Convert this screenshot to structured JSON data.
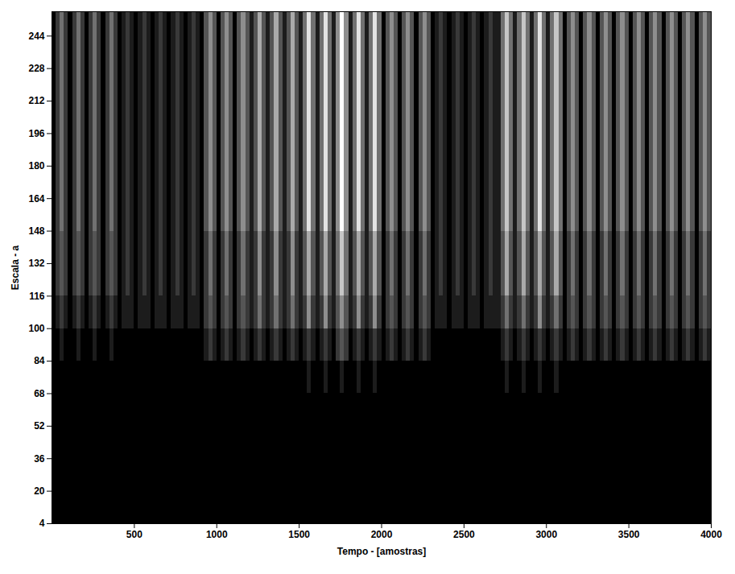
{
  "chart_data": {
    "type": "heatmap",
    "xlabel": "Tempo - [amostras]",
    "ylabel": "Escala - a",
    "xlim": [
      0,
      4000
    ],
    "ylim": [
      4,
      256
    ],
    "xticks": [
      500,
      1000,
      1500,
      2000,
      2500,
      3000,
      3500,
      4000
    ],
    "yticks": [
      4,
      20,
      36,
      52,
      68,
      84,
      100,
      116,
      132,
      148,
      164,
      180,
      196,
      212,
      228,
      244
    ],
    "zlim": [
      0,
      9
    ],
    "x_edges": [
      0,
      25,
      50,
      75,
      100,
      125,
      150,
      175,
      200,
      225,
      250,
      275,
      300,
      325,
      350,
      375,
      400,
      425,
      450,
      475,
      500,
      525,
      550,
      575,
      600,
      625,
      650,
      675,
      700,
      725,
      750,
      775,
      800,
      825,
      850,
      875,
      900,
      925,
      950,
      975,
      1000,
      1025,
      1050,
      1075,
      1100,
      1125,
      1150,
      1175,
      1200,
      1225,
      1250,
      1275,
      1300,
      1325,
      1350,
      1375,
      1400,
      1425,
      1450,
      1475,
      1500,
      1525,
      1550,
      1575,
      1600,
      1625,
      1650,
      1675,
      1700,
      1725,
      1750,
      1775,
      1800,
      1825,
      1850,
      1875,
      1900,
      1925,
      1950,
      1975,
      2000,
      2025,
      2050,
      2075,
      2100,
      2125,
      2150,
      2175,
      2200,
      2225,
      2250,
      2275,
      2300,
      2325,
      2350,
      2375,
      2400,
      2425,
      2450,
      2475,
      2500,
      2525,
      2550,
      2575,
      2600,
      2625,
      2650,
      2675,
      2700,
      2725,
      2750,
      2775,
      2800,
      2825,
      2850,
      2875,
      2900,
      2925,
      2950,
      2975,
      3000,
      3025,
      3050,
      3075,
      3100,
      3125,
      3150,
      3175,
      3200,
      3225,
      3250,
      3275,
      3300,
      3325,
      3350,
      3375,
      3400,
      3425,
      3450,
      3475,
      3500,
      3525,
      3550,
      3575,
      3600,
      3625,
      3650,
      3675,
      3700,
      3725,
      3750,
      3775,
      3800,
      3825,
      3850,
      3875,
      3900,
      3925,
      3950,
      3975,
      4000
    ],
    "y_edges": [
      4,
      68,
      84,
      100,
      116,
      148,
      180,
      212,
      256
    ],
    "z": [
      [
        0,
        0,
        0,
        0,
        0,
        0,
        0,
        0,
        0,
        0,
        0,
        0,
        0,
        0,
        0,
        0,
        0,
        0,
        0,
        0,
        0,
        0,
        0,
        0,
        0,
        0,
        0,
        0,
        0,
        0,
        0,
        0,
        0,
        0,
        0,
        0,
        0,
        0,
        0,
        0,
        0,
        0,
        0,
        0,
        0,
        0,
        0,
        0,
        0,
        0,
        0,
        0,
        0,
        0,
        0,
        0,
        0,
        0,
        0,
        0,
        0,
        0,
        0,
        0,
        0,
        0,
        0,
        0,
        0,
        0,
        0,
        0,
        0,
        0,
        0,
        0,
        0,
        0,
        0,
        0,
        0,
        0,
        0,
        0,
        0,
        0,
        0,
        0,
        0,
        0,
        0,
        0,
        0,
        0,
        0,
        0,
        0,
        0,
        0,
        0,
        0,
        0,
        0,
        0,
        0,
        0,
        0,
        0,
        0,
        0,
        0,
        0,
        0,
        0,
        0,
        0,
        0,
        0,
        0,
        0,
        0,
        0,
        0,
        0,
        0,
        0,
        0,
        0,
        0,
        0,
        0,
        0,
        0,
        0,
        0,
        0,
        0,
        0,
        0,
        0,
        0,
        0,
        0,
        0,
        0,
        0,
        0,
        0,
        0,
        0,
        0,
        0,
        0,
        0,
        0,
        0,
        0,
        0,
        0,
        0
      ],
      [
        0,
        0,
        0,
        0,
        0,
        0,
        0,
        0,
        0,
        0,
        0,
        0,
        0,
        0,
        0,
        0,
        0,
        0,
        0,
        0,
        0,
        0,
        0,
        0,
        0,
        0,
        0,
        0,
        0,
        0,
        0,
        0,
        0,
        0,
        0,
        0,
        0,
        0,
        0,
        0,
        0,
        0,
        0,
        0,
        0,
        0,
        0,
        0,
        0,
        0,
        0,
        0,
        0,
        0,
        0,
        0,
        0,
        0,
        0,
        0,
        0,
        0,
        1,
        0,
        0,
        0,
        1,
        0,
        0,
        0,
        1,
        0,
        0,
        0,
        1,
        0,
        0,
        0,
        1,
        0,
        0,
        0,
        0,
        0,
        0,
        0,
        0,
        0,
        0,
        0,
        0,
        0,
        0,
        0,
        0,
        0,
        0,
        0,
        0,
        0,
        0,
        0,
        0,
        0,
        0,
        0,
        0,
        0,
        0,
        0,
        1,
        0,
        0,
        0,
        1,
        0,
        0,
        0,
        1,
        0,
        0,
        0,
        1,
        0,
        0,
        0,
        0,
        0,
        0,
        0,
        0,
        0,
        0,
        0,
        0,
        0,
        0,
        0,
        0,
        0,
        0,
        0,
        0,
        0,
        0,
        0,
        0,
        0,
        0,
        0,
        0,
        0,
        0,
        0,
        0,
        0,
        0,
        0,
        0,
        0
      ],
      [
        0,
        0,
        1,
        0,
        0,
        0,
        1,
        0,
        0,
        0,
        1,
        0,
        0,
        0,
        1,
        0,
        0,
        0,
        0,
        0,
        0,
        0,
        0,
        0,
        0,
        0,
        0,
        0,
        0,
        0,
        0,
        0,
        0,
        0,
        0,
        0,
        0,
        1,
        2,
        1,
        0,
        1,
        2,
        1,
        0,
        1,
        2,
        1,
        0,
        1,
        2,
        1,
        0,
        1,
        2,
        1,
        0,
        1,
        2,
        1,
        0,
        1,
        2,
        1,
        0,
        1,
        2,
        1,
        0,
        2,
        3,
        2,
        0,
        1,
        2,
        1,
        0,
        1,
        2,
        1,
        0,
        1,
        2,
        1,
        0,
        1,
        2,
        1,
        0,
        1,
        2,
        1,
        0,
        0,
        0,
        0,
        0,
        0,
        0,
        0,
        0,
        0,
        0,
        0,
        0,
        0,
        0,
        0,
        0,
        1,
        2,
        1,
        0,
        1,
        2,
        1,
        0,
        1,
        2,
        1,
        0,
        1,
        2,
        1,
        0,
        1,
        2,
        1,
        0,
        1,
        2,
        1,
        0,
        1,
        2,
        1,
        0,
        1,
        2,
        1,
        0,
        1,
        2,
        1,
        0,
        1,
        2,
        1,
        0,
        1,
        2,
        1,
        0,
        1,
        2,
        1,
        0,
        1,
        2,
        1
      ],
      [
        0,
        1,
        2,
        1,
        0,
        1,
        2,
        1,
        0,
        1,
        2,
        1,
        0,
        1,
        2,
        1,
        0,
        1,
        1,
        1,
        0,
        1,
        1,
        1,
        0,
        1,
        1,
        1,
        0,
        1,
        1,
        1,
        0,
        1,
        1,
        1,
        0,
        2,
        3,
        2,
        0,
        2,
        3,
        2,
        0,
        2,
        3,
        2,
        1,
        2,
        4,
        2,
        1,
        2,
        4,
        2,
        1,
        2,
        4,
        2,
        1,
        2,
        5,
        2,
        1,
        2,
        5,
        2,
        1,
        3,
        5,
        3,
        1,
        2,
        5,
        2,
        1,
        2,
        5,
        2,
        0,
        2,
        3,
        2,
        0,
        2,
        3,
        2,
        0,
        2,
        3,
        2,
        0,
        1,
        1,
        1,
        0,
        1,
        1,
        1,
        0,
        1,
        1,
        1,
        0,
        1,
        1,
        1,
        1,
        2,
        4,
        2,
        1,
        2,
        4,
        2,
        1,
        2,
        5,
        2,
        1,
        2,
        4,
        2,
        0,
        2,
        3,
        2,
        0,
        2,
        3,
        2,
        0,
        2,
        3,
        2,
        0,
        2,
        3,
        2,
        0,
        2,
        3,
        2,
        0,
        2,
        3,
        2,
        0,
        2,
        3,
        2,
        0,
        2,
        3,
        2,
        0,
        2,
        3,
        2
      ],
      [
        0,
        2,
        3,
        2,
        0,
        2,
        3,
        2,
        0,
        2,
        3,
        2,
        0,
        2,
        3,
        2,
        0,
        1,
        2,
        1,
        0,
        1,
        2,
        1,
        0,
        1,
        2,
        1,
        0,
        1,
        2,
        1,
        0,
        1,
        2,
        1,
        0,
        2,
        4,
        2,
        0,
        2,
        4,
        2,
        0,
        2,
        4,
        2,
        1,
        2,
        5,
        2,
        1,
        2,
        5,
        2,
        1,
        2,
        5,
        2,
        1,
        3,
        6,
        3,
        1,
        3,
        6,
        3,
        1,
        4,
        7,
        4,
        1,
        3,
        6,
        3,
        1,
        3,
        6,
        3,
        0,
        2,
        4,
        2,
        0,
        2,
        4,
        2,
        0,
        2,
        4,
        2,
        0,
        1,
        2,
        1,
        0,
        1,
        2,
        1,
        0,
        1,
        2,
        1,
        0,
        1,
        2,
        1,
        1,
        3,
        6,
        3,
        1,
        3,
        6,
        3,
        1,
        3,
        6,
        3,
        1,
        3,
        6,
        3,
        0,
        2,
        4,
        2,
        0,
        2,
        4,
        2,
        0,
        2,
        4,
        2,
        0,
        2,
        4,
        2,
        0,
        2,
        4,
        2,
        0,
        2,
        4,
        2,
        0,
        2,
        4,
        2,
        0,
        2,
        4,
        2,
        0,
        2,
        4,
        2
      ],
      [
        0,
        2,
        4,
        2,
        0,
        2,
        4,
        2,
        0,
        2,
        4,
        2,
        0,
        2,
        4,
        2,
        0,
        1,
        2,
        1,
        0,
        1,
        2,
        1,
        0,
        1,
        2,
        1,
        0,
        1,
        2,
        1,
        0,
        1,
        2,
        1,
        0,
        3,
        5,
        3,
        0,
        3,
        5,
        3,
        0,
        3,
        5,
        3,
        1,
        3,
        6,
        3,
        1,
        3,
        6,
        3,
        1,
        3,
        6,
        3,
        1,
        4,
        8,
        4,
        1,
        4,
        8,
        4,
        1,
        5,
        9,
        5,
        1,
        4,
        8,
        4,
        1,
        4,
        8,
        4,
        0,
        3,
        5,
        3,
        0,
        3,
        5,
        3,
        0,
        3,
        5,
        3,
        0,
        1,
        2,
        1,
        0,
        1,
        2,
        1,
        0,
        1,
        2,
        1,
        0,
        1,
        2,
        1,
        1,
        4,
        7,
        4,
        1,
        4,
        7,
        4,
        1,
        4,
        8,
        4,
        1,
        4,
        7,
        4,
        0,
        3,
        5,
        3,
        0,
        3,
        5,
        3,
        0,
        3,
        5,
        3,
        0,
        3,
        5,
        3,
        0,
        3,
        5,
        3,
        0,
        3,
        5,
        3,
        0,
        3,
        5,
        3,
        0,
        3,
        5,
        3,
        0,
        3,
        5,
        3
      ],
      [
        0,
        2,
        4,
        2,
        0,
        2,
        4,
        2,
        0,
        2,
        4,
        2,
        0,
        2,
        4,
        2,
        0,
        1,
        2,
        1,
        0,
        1,
        2,
        1,
        0,
        1,
        2,
        1,
        0,
        1,
        2,
        1,
        0,
        1,
        2,
        1,
        0,
        3,
        5,
        3,
        0,
        3,
        5,
        3,
        0,
        3,
        5,
        3,
        1,
        3,
        6,
        3,
        1,
        3,
        6,
        3,
        1,
        3,
        6,
        3,
        1,
        4,
        8,
        4,
        1,
        4,
        8,
        4,
        1,
        5,
        9,
        5,
        1,
        4,
        8,
        4,
        1,
        4,
        8,
        4,
        0,
        3,
        5,
        3,
        0,
        3,
        5,
        3,
        0,
        3,
        5,
        3,
        0,
        1,
        2,
        1,
        0,
        1,
        2,
        1,
        0,
        1,
        2,
        1,
        0,
        1,
        2,
        1,
        1,
        4,
        7,
        4,
        1,
        4,
        7,
        4,
        1,
        4,
        8,
        4,
        1,
        4,
        7,
        4,
        0,
        3,
        5,
        3,
        0,
        3,
        5,
        3,
        0,
        3,
        5,
        3,
        0,
        3,
        5,
        3,
        0,
        3,
        5,
        3,
        0,
        3,
        5,
        3,
        0,
        3,
        5,
        3,
        0,
        3,
        5,
        3,
        0,
        3,
        5,
        3
      ],
      [
        0,
        2,
        4,
        2,
        0,
        2,
        4,
        2,
        0,
        2,
        4,
        2,
        0,
        2,
        4,
        2,
        0,
        1,
        2,
        1,
        0,
        1,
        2,
        1,
        0,
        1,
        2,
        1,
        0,
        1,
        2,
        1,
        0,
        1,
        2,
        1,
        0,
        3,
        5,
        3,
        0,
        3,
        5,
        3,
        0,
        3,
        5,
        3,
        1,
        3,
        6,
        3,
        1,
        3,
        6,
        3,
        1,
        3,
        6,
        3,
        1,
        4,
        8,
        4,
        1,
        4,
        8,
        4,
        1,
        5,
        9,
        5,
        1,
        4,
        8,
        4,
        1,
        4,
        8,
        4,
        0,
        3,
        5,
        3,
        0,
        3,
        5,
        3,
        0,
        3,
        5,
        3,
        0,
        1,
        2,
        1,
        0,
        1,
        2,
        1,
        0,
        1,
        2,
        1,
        0,
        1,
        2,
        1,
        1,
        4,
        7,
        4,
        1,
        4,
        7,
        4,
        1,
        4,
        8,
        4,
        1,
        4,
        7,
        4,
        0,
        3,
        5,
        3,
        0,
        3,
        5,
        3,
        0,
        3,
        5,
        3,
        0,
        3,
        5,
        3,
        0,
        3,
        5,
        3,
        0,
        3,
        5,
        3,
        0,
        3,
        5,
        3,
        0,
        3,
        5,
        3,
        0,
        3,
        5,
        3
      ]
    ]
  }
}
